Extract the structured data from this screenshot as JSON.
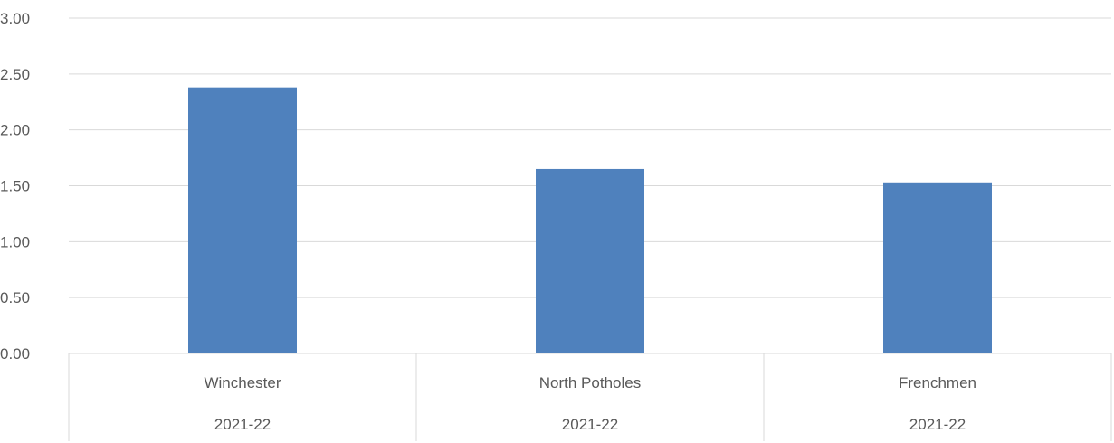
{
  "chart_data": {
    "type": "bar",
    "categories": [
      {
        "label": "Winchester",
        "group": "2021-22"
      },
      {
        "label": "North Potholes",
        "group": "2021-22"
      },
      {
        "label": "Frenchmen",
        "group": "2021-22"
      }
    ],
    "values": [
      2.38,
      1.65,
      1.53
    ],
    "ylim": [
      0,
      3
    ],
    "yticks": [
      "0.00",
      "0.50",
      "1.00",
      "1.50",
      "2.00",
      "2.50",
      "3.00"
    ],
    "grid": true,
    "legend": "none",
    "colors": {
      "bar": "#4f81bd",
      "grid": "#d9d9d9",
      "text": "#595959"
    }
  }
}
